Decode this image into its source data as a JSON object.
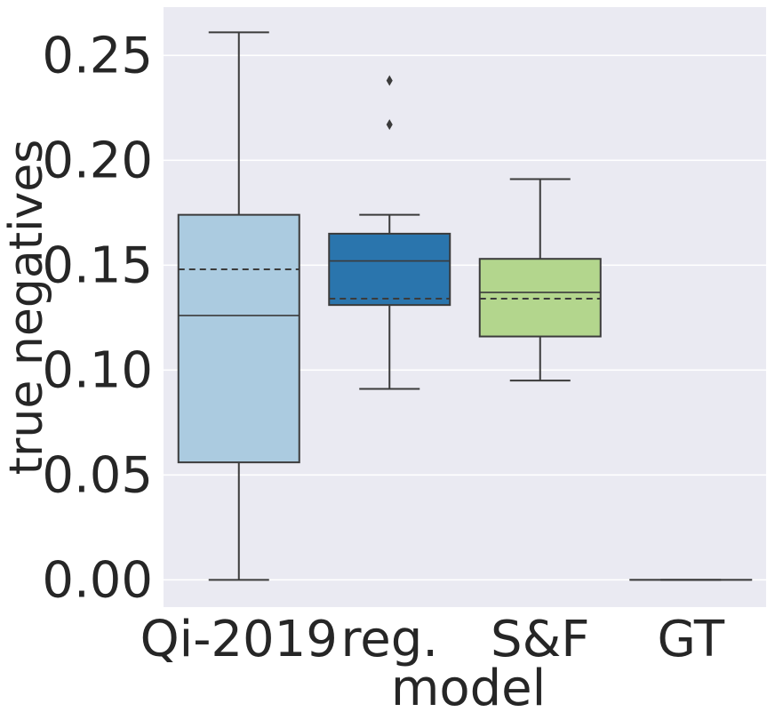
{
  "chart_data": {
    "type": "box",
    "title": "",
    "xlabel": "model",
    "ylabel": "true negatives",
    "ylim": [
      -0.013,
      0.273
    ],
    "yticks": [
      0.0,
      0.05,
      0.1,
      0.15,
      0.2,
      0.25
    ],
    "ytick_labels": [
      "0.00",
      "0.05",
      "0.10",
      "0.15",
      "0.20",
      "0.25"
    ],
    "grid": true,
    "categories": [
      "Qi-2019",
      "reg.",
      "S&F",
      "GT"
    ],
    "boxes": [
      {
        "name": "Qi-2019",
        "whisker_low": 0.0,
        "q1": 0.056,
        "median": 0.126,
        "mean": 0.148,
        "q3": 0.174,
        "whisker_high": 0.261,
        "outliers": [],
        "color": "#abcbe0"
      },
      {
        "name": "reg.",
        "whisker_low": 0.091,
        "q1": 0.131,
        "median": 0.152,
        "mean": 0.134,
        "q3": 0.165,
        "whisker_high": 0.174,
        "outliers": [
          0.217,
          0.238
        ],
        "color": "#2a75ad"
      },
      {
        "name": "S&F",
        "whisker_low": 0.095,
        "q1": 0.116,
        "median": 0.137,
        "mean": 0.134,
        "q3": 0.153,
        "whisker_high": 0.191,
        "outliers": [],
        "color": "#b3d68d"
      },
      {
        "name": "GT",
        "whisker_low": 0.0,
        "q1": 0.0,
        "median": 0.0,
        "mean": 0.0,
        "q3": 0.0,
        "whisker_high": 0.0,
        "outliers": [],
        "color": "#c9e6a4"
      }
    ],
    "colors": {
      "background": "#eaeaf2",
      "grid": "#ffffff",
      "line": "#3b3b3b"
    }
  }
}
